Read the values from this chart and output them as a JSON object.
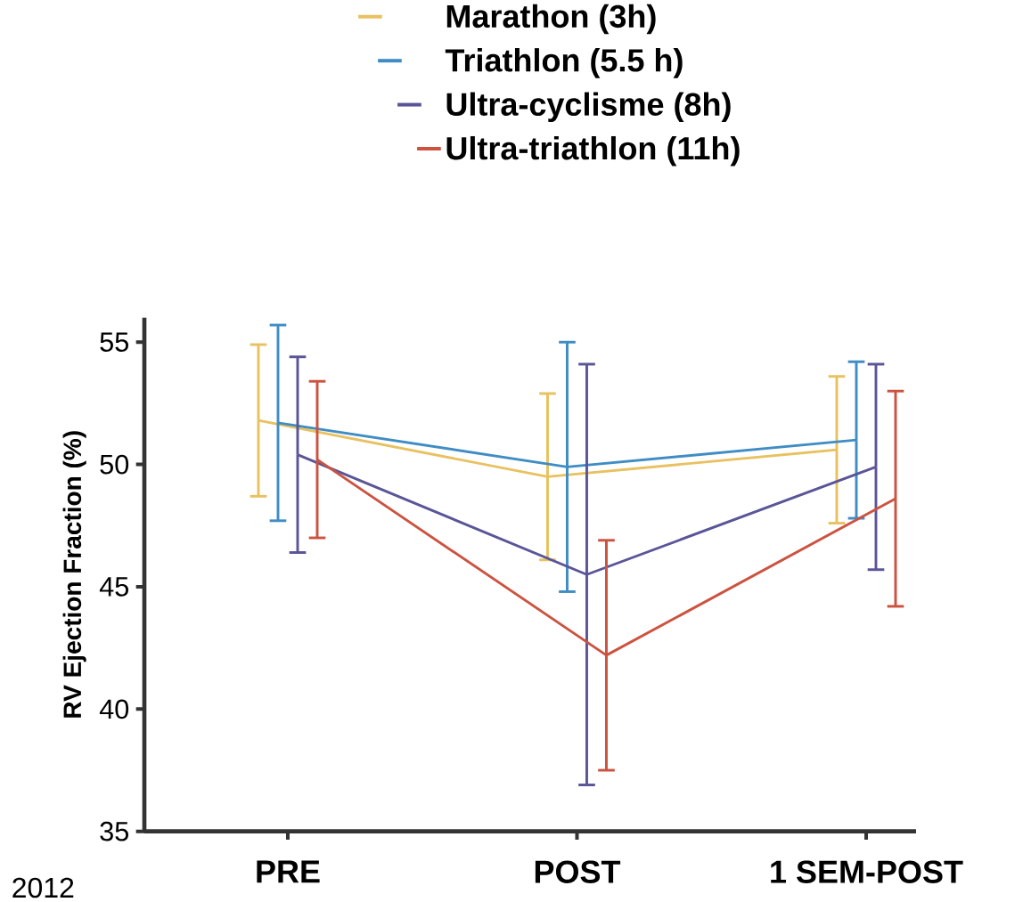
{
  "chart_data": {
    "type": "line",
    "ylabel": "RV Ejection Fraction (%)",
    "categories": [
      "PRE",
      "POST",
      "1 SEM-POST"
    ],
    "ylim": [
      35,
      56
    ],
    "yticks": [
      35,
      40,
      45,
      50,
      55
    ],
    "legend": "top",
    "marker": "none",
    "annotations": [
      "2012"
    ],
    "series": [
      {
        "name": "Marathon (3h)",
        "color": "#e8c160",
        "values": [
          51.8,
          49.5,
          50.6
        ],
        "errors": [
          3.1,
          3.4,
          3.0
        ]
      },
      {
        "name": "Triathlon (5.5 h)",
        "color": "#3f8dc4",
        "values": [
          51.7,
          49.9,
          51.0
        ],
        "errors": [
          4.0,
          5.1,
          3.2
        ]
      },
      {
        "name": "Ultra-cyclisme (8h)",
        "color": "#5a5597",
        "values": [
          50.4,
          45.5,
          49.9
        ],
        "errors": [
          4.0,
          8.6,
          4.2
        ]
      },
      {
        "name": "Ultra-triathlon (11h)",
        "color": "#cc5340",
        "values": [
          50.2,
          42.2,
          48.6
        ],
        "errors": [
          3.2,
          4.7,
          4.4
        ]
      }
    ]
  }
}
